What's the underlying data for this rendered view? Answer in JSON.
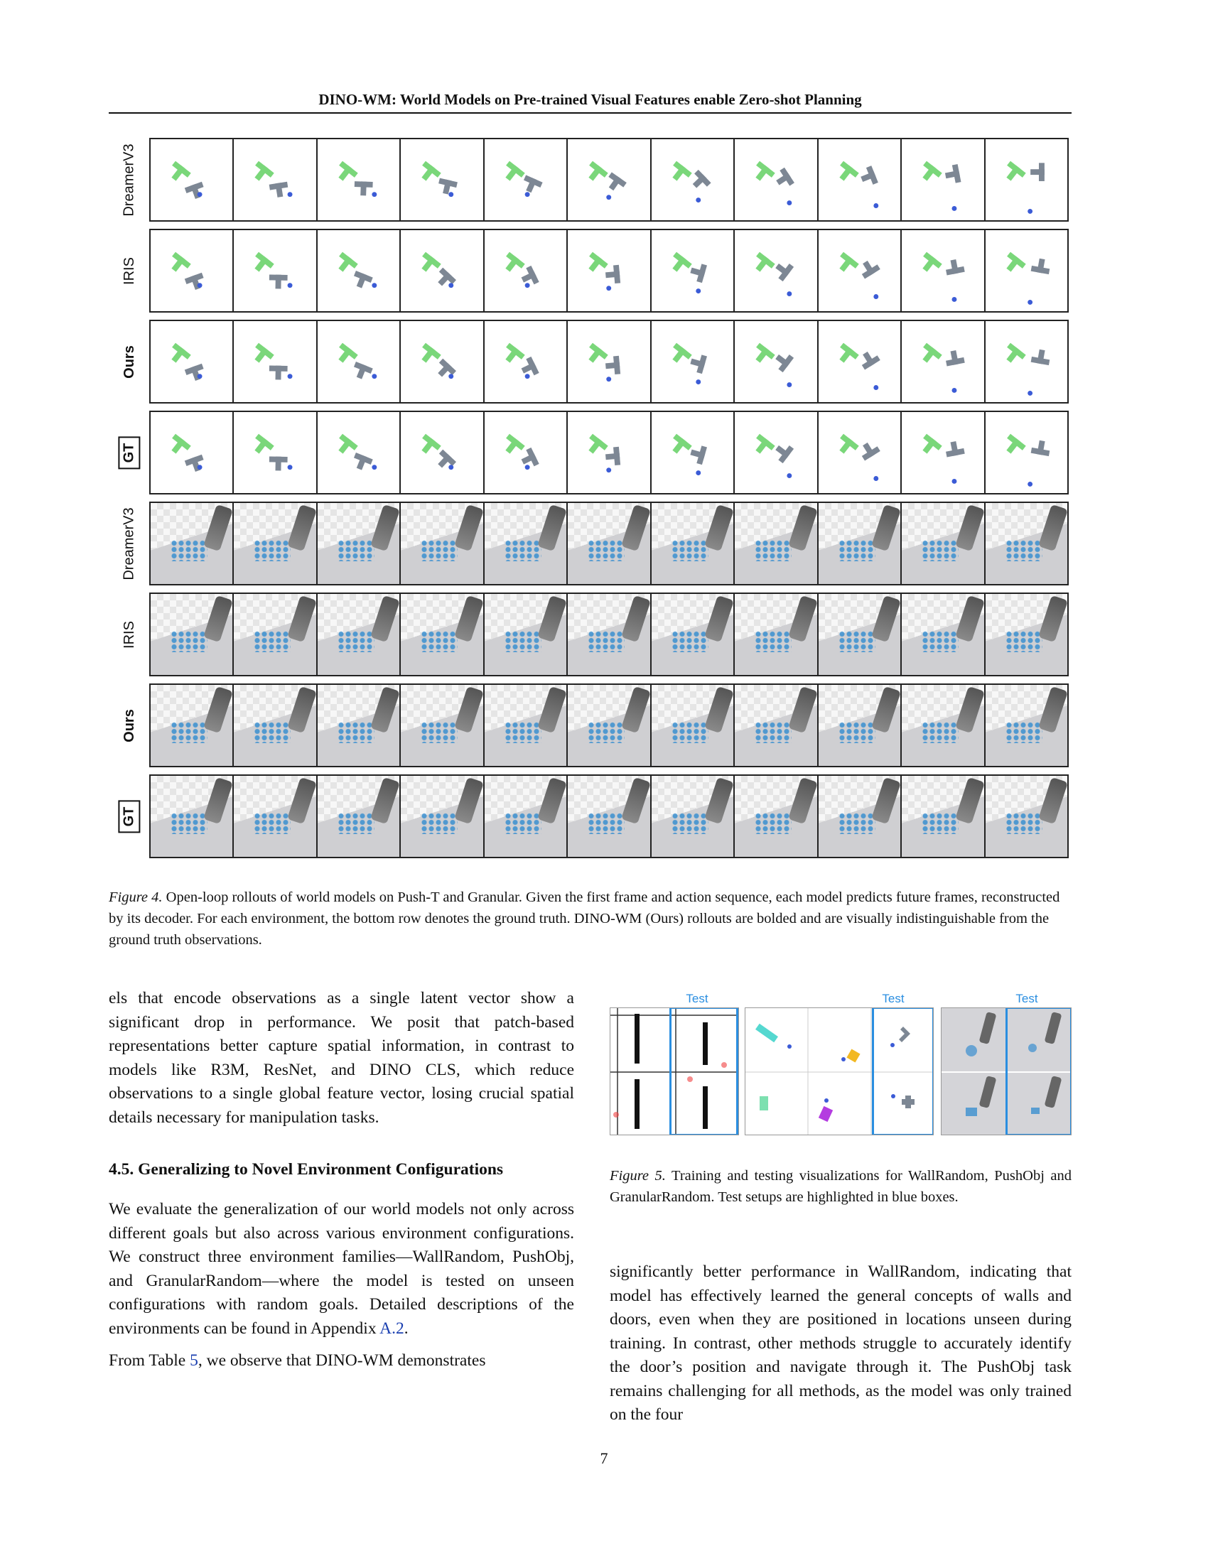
{
  "header": {
    "title": "DINO-WM: World Models on Pre-trained Visual Features enable Zero-shot Planning"
  },
  "figure4": {
    "rows": [
      {
        "label": "DreamerV3",
        "style": "normal",
        "env": "push"
      },
      {
        "label": "IRIS",
        "style": "normal",
        "env": "push"
      },
      {
        "label": "Ours",
        "style": "bold",
        "env": "push"
      },
      {
        "label": "GT",
        "style": "boxed",
        "env": "push"
      },
      {
        "label": "DreamerV3",
        "style": "normal",
        "env": "gran"
      },
      {
        "label": "IRIS",
        "style": "normal",
        "env": "gran"
      },
      {
        "label": "Ours",
        "style": "bold",
        "env": "gran"
      },
      {
        "label": "GT",
        "style": "boxed",
        "env": "gran"
      }
    ],
    "caption_label": "Figure 4.",
    "caption_text": " Open-loop rollouts of world models on Push-T and Granular. Given the first frame and action sequence, each model predicts future frames, reconstructed by its decoder. For each environment, the bottom row denotes the ground truth. DINO-WM (Ours) rollouts are bolded and are visually indistinguishable from the ground truth observations."
  },
  "left_column": {
    "p1": "els that encode observations as a single latent vector show a significant drop in performance. We posit that patch-based representations better capture spatial information, in contrast to models like R3M, ResNet, and DINO CLS, which reduce observations to a single global feature vector, losing crucial spatial details necessary for manipulation tasks.",
    "heading": "4.5. Generalizing to Novel Environment Configurations",
    "p2_before": "We evaluate the generalization of our world models not only across different goals but also across various environment configurations. We construct three environment families—WallRandom, PushObj, and GranularRandom—where the model is tested on unseen configurations with random goals. Detailed descriptions of the environments can be found in Appendix ",
    "p2_link": "A.2",
    "p2_after": ".",
    "p3_before": "From Table ",
    "p3_link": "5",
    "p3_after": ", we observe that DINO-WM demonstrates"
  },
  "figure5": {
    "test_label": "Test",
    "caption_label": "Figure 5.",
    "caption_text": " Training and testing visualizations for WallRandom, PushObj and GranularRandom. Test setups are highlighted in blue boxes."
  },
  "right_column": {
    "p1": "significantly better performance in WallRandom, indicating that model has effectively learned the general concepts of walls and doors, even when they are positioned in locations unseen during training. In contrast, other methods struggle to accurately identify the door’s position and navigate through it. The PushObj task remains challenging for all methods, as the model was only trained on the four"
  },
  "footer": {
    "page_number": "7"
  },
  "colors": {
    "link": "#1a3fb0",
    "test_highlight": "#2a8ee0",
    "pusht_goal": "#7ad77a",
    "pusht_object": "#7d8794",
    "agent": "#3b5bd6"
  }
}
